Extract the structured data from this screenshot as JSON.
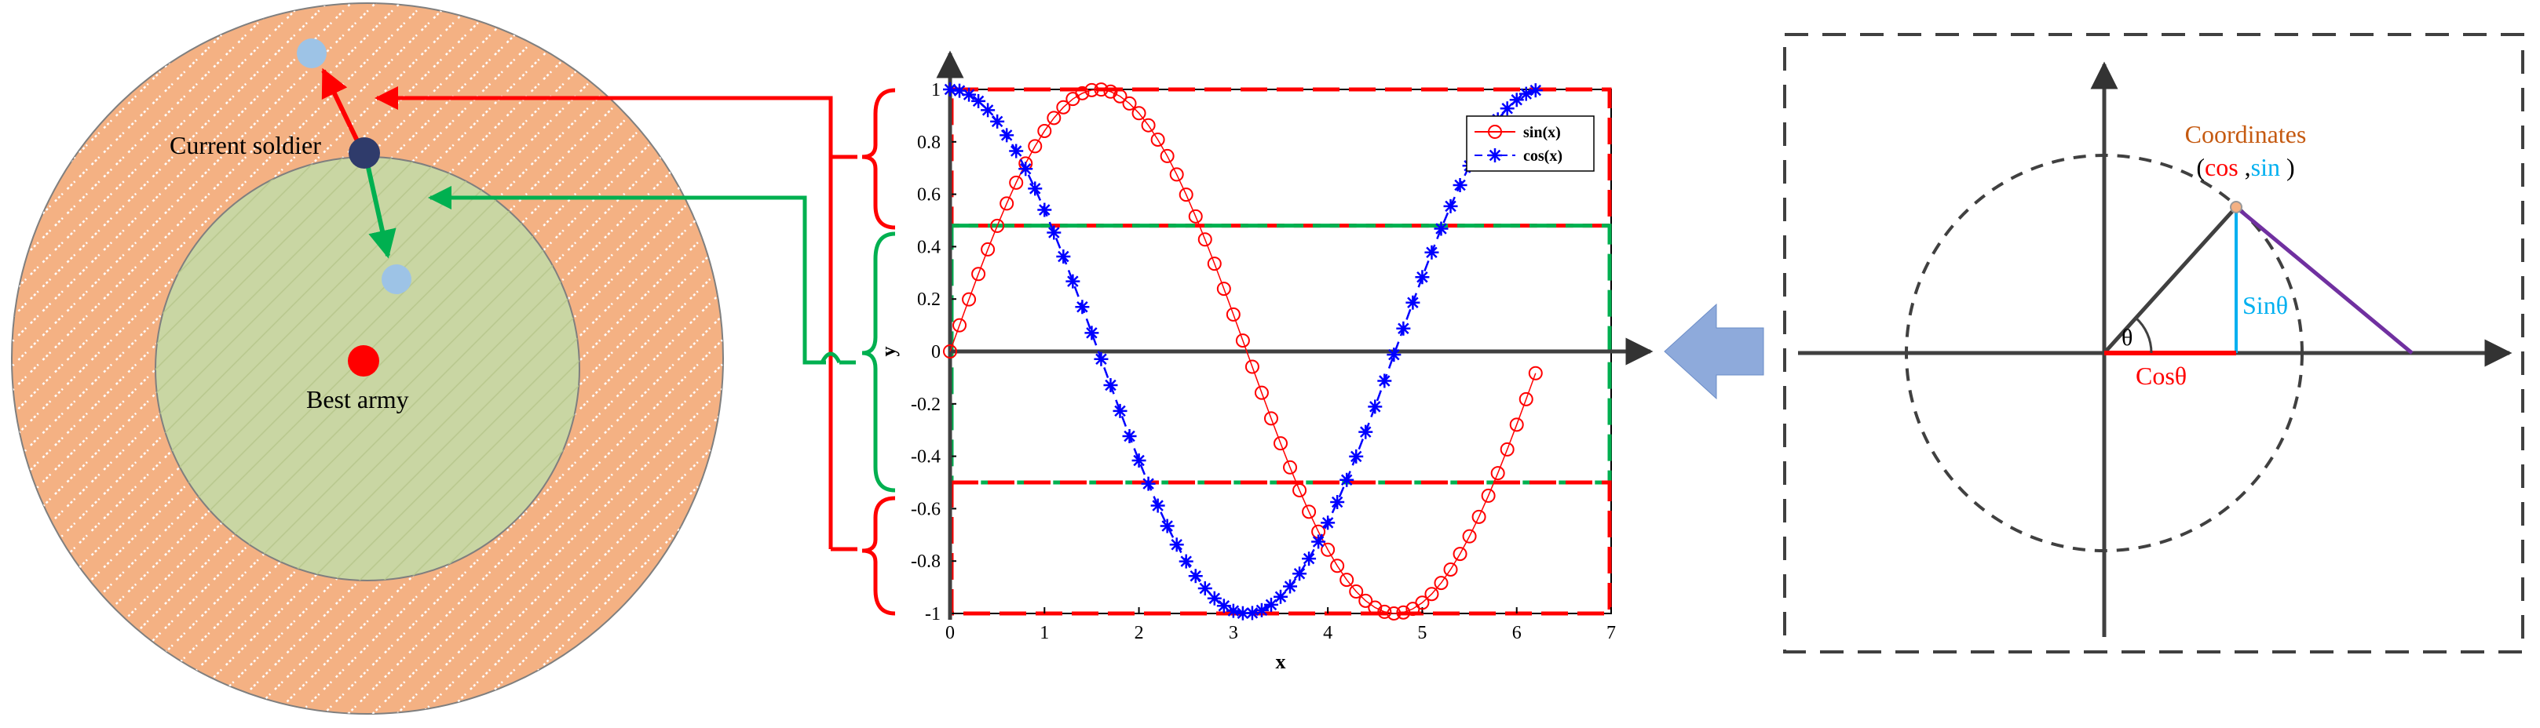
{
  "left_panel": {
    "current_label": "Current soldier",
    "best_label": "Best army",
    "colors": {
      "outer_ring": "#f4b183",
      "inner_circle": "#c9d6a3",
      "current_dot": "#2f3b6b",
      "best_dot": "#ff0000",
      "candidate_dot": "#9dc3e6",
      "red_arrow": "#ff0000",
      "green_arrow": "#00b050"
    }
  },
  "chart_data": {
    "type": "line",
    "xlabel": "x",
    "ylabel": "y",
    "xlim": [
      0,
      7
    ],
    "ylim": [
      -1,
      1
    ],
    "x_ticks": [
      "0",
      "1",
      "2",
      "3",
      "4",
      "5",
      "6",
      "7"
    ],
    "y_ticks": [
      "-1",
      "-0.8",
      "-0.6",
      "-0.4",
      "-0.2",
      "0",
      "0.2",
      "0.4",
      "0.6",
      "0.8",
      "1"
    ],
    "x_step": 0.1,
    "x_max": 6.2,
    "series": [
      {
        "name": "sin(x)",
        "function": "sin",
        "color": "#ff0000",
        "marker": "circle"
      },
      {
        "name": "cos(x)",
        "function": "cos",
        "color": "#0000ff",
        "marker": "asterisk"
      }
    ],
    "legend_position": "top-right",
    "bands": [
      {
        "range": [
          0.48,
          1.0
        ],
        "color": "#ff0000"
      },
      {
        "range": [
          -0.5,
          0.48
        ],
        "color": "#00b050"
      },
      {
        "range": [
          -1.0,
          -0.5
        ],
        "color": "#ff0000"
      }
    ]
  },
  "right_panel": {
    "title": "Coordinates",
    "coord_open": "(",
    "coord_cos": "cos",
    "coord_sep": " ,",
    "coord_sin": "sin",
    "coord_close": " )",
    "theta": "θ",
    "sin_label": "Sinθ",
    "cos_label": "Cosθ",
    "colors": {
      "title": "#c55a11",
      "cos": "#ff0000",
      "sin": "#00b0f0",
      "hyp": "#7030a0"
    }
  },
  "connector": {
    "arrow_color": "#8eaadb"
  }
}
